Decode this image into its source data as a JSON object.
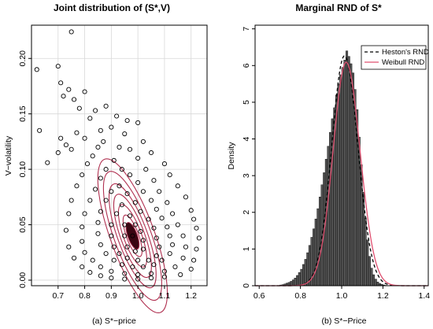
{
  "chart_data": [
    {
      "type": "scatter",
      "title": "Joint distribution of (S*,V)",
      "xlabel": "",
      "ylabel": "V−volatility",
      "caption": "(a)  S*−price",
      "xlim": [
        0.6,
        1.26
      ],
      "ylim": [
        -0.005,
        0.23
      ],
      "xticks": [
        0.7,
        0.8,
        0.9,
        1.0,
        1.1,
        1.2
      ],
      "xtick_labels": [
        "0.7",
        "0.8",
        "0.9",
        "1.0",
        "1.1",
        "1.2"
      ],
      "yticks": [
        0.0,
        0.05,
        0.1,
        0.15,
        0.2
      ],
      "ytick_labels": [
        "0.00",
        "0.05",
        "0.10",
        "0.15",
        "0.20"
      ],
      "grid": true,
      "point_color": "#000000",
      "density_contour_color": "#b03050",
      "center": [
        0.98,
        0.04
      ],
      "points": [
        [
          0.62,
          0.19
        ],
        [
          0.63,
          0.135
        ],
        [
          0.75,
          0.224
        ],
        [
          0.7,
          0.193
        ],
        [
          0.71,
          0.178
        ],
        [
          0.72,
          0.166
        ],
        [
          0.74,
          0.172
        ],
        [
          0.76,
          0.163
        ],
        [
          0.78,
          0.155
        ],
        [
          0.8,
          0.17
        ],
        [
          0.71,
          0.128
        ],
        [
          0.73,
          0.122
        ],
        [
          0.7,
          0.115
        ],
        [
          0.66,
          0.106
        ],
        [
          0.75,
          0.118
        ],
        [
          0.77,
          0.133
        ],
        [
          0.8,
          0.128
        ],
        [
          0.82,
          0.146
        ],
        [
          0.84,
          0.153
        ],
        [
          0.88,
          0.157
        ],
        [
          0.92,
          0.148
        ],
        [
          0.96,
          0.144
        ],
        [
          1.0,
          0.142
        ],
        [
          0.9,
          0.138
        ],
        [
          0.86,
          0.135
        ],
        [
          0.95,
          0.132
        ],
        [
          1.02,
          0.125
        ],
        [
          1.05,
          0.115
        ],
        [
          1.1,
          0.105
        ],
        [
          1.12,
          0.095
        ],
        [
          1.15,
          0.085
        ],
        [
          1.18,
          0.075
        ],
        [
          1.2,
          0.063
        ],
        [
          1.21,
          0.055
        ],
        [
          1.22,
          0.047
        ],
        [
          1.23,
          0.038
        ],
        [
          1.22,
          0.028
        ],
        [
          1.21,
          0.018
        ],
        [
          1.2,
          0.01
        ],
        [
          1.16,
          0.005
        ],
        [
          1.1,
          0.003
        ],
        [
          1.05,
          0.002
        ],
        [
          1.0,
          0.001
        ],
        [
          0.95,
          0.001
        ],
        [
          0.9,
          0.002
        ],
        [
          0.86,
          0.004
        ],
        [
          0.82,
          0.007
        ],
        [
          0.79,
          0.012
        ],
        [
          0.76,
          0.02
        ],
        [
          0.74,
          0.03
        ],
        [
          0.73,
          0.045
        ],
        [
          0.74,
          0.06
        ],
        [
          0.75,
          0.072
        ],
        [
          0.77,
          0.085
        ],
        [
          0.79,
          0.095
        ],
        [
          0.81,
          0.105
        ],
        [
          0.83,
          0.112
        ],
        [
          0.85,
          0.12
        ],
        [
          0.87,
          0.125
        ],
        [
          0.93,
          0.12
        ],
        [
          0.97,
          0.118
        ],
        [
          1.0,
          0.11
        ],
        [
          1.03,
          0.1
        ],
        [
          1.06,
          0.09
        ],
        [
          1.08,
          0.08
        ],
        [
          1.11,
          0.07
        ],
        [
          1.13,
          0.06
        ],
        [
          1.15,
          0.05
        ],
        [
          1.17,
          0.04
        ],
        [
          1.18,
          0.03
        ],
        [
          1.17,
          0.02
        ],
        [
          1.14,
          0.012
        ],
        [
          1.1,
          0.008
        ],
        [
          1.05,
          0.006
        ],
        [
          1.0,
          0.005
        ],
        [
          0.95,
          0.006
        ],
        [
          0.9,
          0.008
        ],
        [
          0.86,
          0.012
        ],
        [
          0.83,
          0.018
        ],
        [
          0.8,
          0.025
        ],
        [
          0.79,
          0.035
        ],
        [
          0.79,
          0.048
        ],
        [
          0.8,
          0.06
        ],
        [
          0.82,
          0.072
        ],
        [
          0.84,
          0.082
        ],
        [
          0.86,
          0.092
        ],
        [
          0.88,
          0.1
        ],
        [
          0.91,
          0.108
        ],
        [
          0.94,
          0.1
        ],
        [
          0.97,
          0.095
        ],
        [
          1.0,
          0.088
        ],
        [
          1.02,
          0.08
        ],
        [
          1.05,
          0.072
        ],
        [
          1.07,
          0.064
        ],
        [
          1.09,
          0.056
        ],
        [
          1.11,
          0.048
        ],
        [
          1.12,
          0.04
        ],
        [
          1.13,
          0.032
        ],
        [
          1.12,
          0.024
        ],
        [
          1.09,
          0.018
        ],
        [
          1.06,
          0.014
        ],
        [
          1.02,
          0.012
        ],
        [
          0.98,
          0.012
        ],
        [
          0.94,
          0.014
        ],
        [
          0.91,
          0.018
        ],
        [
          0.88,
          0.024
        ],
        [
          0.86,
          0.032
        ],
        [
          0.85,
          0.042
        ],
        [
          0.85,
          0.052
        ],
        [
          0.86,
          0.062
        ],
        [
          0.88,
          0.072
        ],
        [
          0.9,
          0.08
        ],
        [
          0.93,
          0.085
        ],
        [
          0.96,
          0.078
        ],
        [
          0.99,
          0.07
        ],
        [
          1.01,
          0.062
        ],
        [
          1.04,
          0.055
        ],
        [
          1.06,
          0.047
        ],
        [
          1.07,
          0.038
        ],
        [
          1.08,
          0.03
        ],
        [
          1.07,
          0.022
        ],
        [
          1.04,
          0.018
        ],
        [
          1.0,
          0.018
        ],
        [
          0.96,
          0.02
        ],
        [
          0.93,
          0.024
        ],
        [
          0.91,
          0.03
        ],
        [
          0.9,
          0.04
        ],
        [
          0.9,
          0.05
        ],
        [
          0.92,
          0.06
        ],
        [
          0.94,
          0.068
        ],
        [
          0.97,
          0.058
        ],
        [
          0.99,
          0.05
        ],
        [
          1.01,
          0.044
        ],
        [
          1.02,
          0.036
        ],
        [
          1.02,
          0.028
        ],
        [
          0.99,
          0.026
        ],
        [
          0.96,
          0.03
        ],
        [
          0.95,
          0.04
        ],
        [
          0.95,
          0.05
        ],
        [
          0.98,
          0.04
        ]
      ],
      "contour_levels": [
        0.25,
        0.5,
        0.75,
        1.0,
        1.3,
        1.6
      ]
    },
    {
      "type": "bar",
      "subtype": "histogram",
      "title": "Marginal RND of S*",
      "xlabel": "",
      "ylabel": "Density",
      "caption": "(b)  S*−Price",
      "xlim": [
        0.58,
        1.42
      ],
      "ylim": [
        0,
        7.1
      ],
      "xticks": [
        0.6,
        0.8,
        1.0,
        1.2,
        1.4
      ],
      "xtick_labels": [
        "0.6",
        "0.8",
        "1.0",
        "1.2",
        "1.4"
      ],
      "yticks": [
        0,
        1,
        2,
        3,
        4,
        5,
        6,
        7
      ],
      "ytick_labels": [
        "0",
        "1",
        "2",
        "3",
        "4",
        "5",
        "6",
        "7"
      ],
      "grid": false,
      "bar_color": "#555555",
      "bin_width": 0.01,
      "bin_starts": [
        0.7,
        0.71,
        0.72,
        0.73,
        0.74,
        0.75,
        0.76,
        0.77,
        0.78,
        0.79,
        0.8,
        0.81,
        0.82,
        0.83,
        0.84,
        0.85,
        0.86,
        0.87,
        0.88,
        0.89,
        0.9,
        0.91,
        0.92,
        0.93,
        0.94,
        0.95,
        0.96,
        0.97,
        0.98,
        0.99,
        1.0,
        1.01,
        1.02,
        1.03,
        1.04,
        1.05,
        1.06,
        1.07,
        1.08,
        1.09,
        1.1,
        1.11,
        1.12,
        1.13,
        1.14,
        1.15,
        1.16,
        1.17,
        1.18,
        1.19,
        1.2,
        1.21
      ],
      "densities": [
        0.02,
        0.03,
        0.05,
        0.07,
        0.09,
        0.12,
        0.16,
        0.21,
        0.28,
        0.36,
        0.45,
        0.58,
        0.72,
        0.9,
        1.1,
        1.32,
        1.55,
        1.82,
        2.1,
        2.42,
        2.75,
        3.08,
        3.45,
        3.8,
        4.18,
        4.55,
        4.85,
        5.2,
        5.5,
        5.75,
        5.95,
        6.15,
        6.4,
        6.25,
        6.05,
        5.8,
        5.35,
        4.8,
        4.05,
        3.3,
        2.55,
        1.85,
        1.25,
        0.8,
        0.48,
        0.3,
        0.18,
        0.1,
        0.06,
        0.04,
        0.02,
        0.01
      ],
      "legend": {
        "placement": "top-right",
        "entries": [
          {
            "label": "Heston's RND",
            "color": "#000000",
            "dash": "dashed"
          },
          {
            "label": "Weibull RND",
            "color": "#e05070",
            "dash": "solid"
          }
        ]
      },
      "series": [
        {
          "name": "Heston's RND",
          "color": "#000000",
          "mode": 1.02,
          "sd": 0.064,
          "skew": -0.4
        },
        {
          "name": "Weibull RND",
          "color": "#e05070",
          "mode": 1.03,
          "sd": 0.066,
          "skew": -0.5
        }
      ]
    }
  ]
}
